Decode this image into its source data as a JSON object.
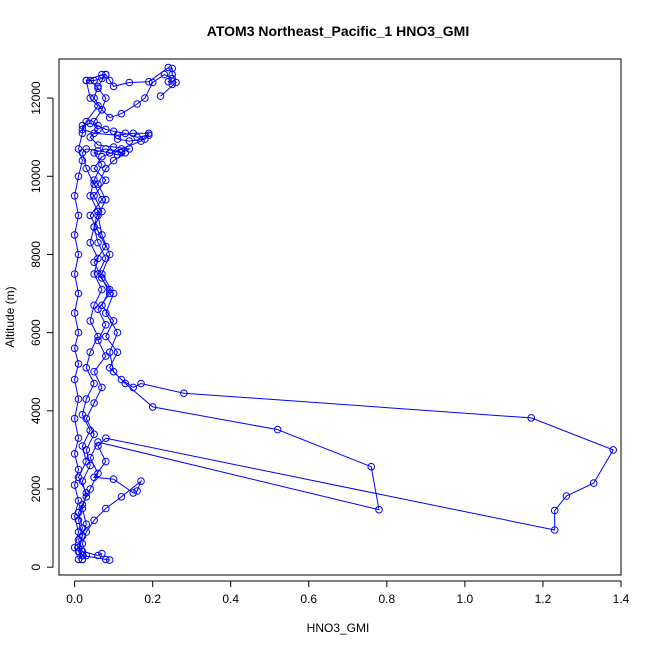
{
  "chart_data": {
    "type": "line",
    "title": "ATOM3 Northeast_Pacific_1 HNO3_GMI",
    "xlabel": "HNO3_GMI",
    "ylabel": "Altitude (m)",
    "xlim": [
      -0.04,
      1.4
    ],
    "ylim": [
      -200,
      13000
    ],
    "xticks": [
      0.0,
      0.2,
      0.4,
      0.6,
      0.8,
      1.0,
      1.2,
      1.4
    ],
    "yticks": [
      0,
      2000,
      4000,
      6000,
      8000,
      10000,
      12000
    ],
    "xtick_labels": [
      "0.0",
      "0.2",
      "0.4",
      "0.6",
      "0.8",
      "1.0",
      "1.2",
      "1.4"
    ],
    "ytick_labels": [
      "0",
      "2000",
      "4000",
      "6000",
      "8000",
      "10000",
      "12000"
    ],
    "grid": false,
    "legend": "none",
    "series_color": "#0000ff",
    "series": [
      {
        "values": [
          [
            0.09,
            180
          ],
          [
            0.08,
            200
          ],
          [
            0.02,
            300
          ],
          [
            0.01,
            500
          ],
          [
            0.02,
            800
          ],
          [
            0.03,
            1100
          ],
          [
            0.02,
            1500
          ],
          [
            0.03,
            1900
          ],
          [
            0.01,
            2300
          ],
          [
            0.03,
            2700
          ],
          [
            0.02,
            3100
          ],
          [
            0.04,
            3500
          ],
          [
            0.02,
            3900
          ],
          [
            0.03,
            4300
          ],
          [
            0.05,
            4700
          ],
          [
            0.03,
            5100
          ],
          [
            0.04,
            5500
          ],
          [
            0.06,
            5900
          ],
          [
            0.04,
            6300
          ],
          [
            0.05,
            6700
          ],
          [
            0.07,
            7100
          ],
          [
            0.05,
            7500
          ],
          [
            0.06,
            7900
          ],
          [
            0.04,
            8300
          ],
          [
            0.05,
            8700
          ],
          [
            0.06,
            9100
          ],
          [
            0.04,
            9500
          ],
          [
            0.05,
            9900
          ],
          [
            0.07,
            10300
          ],
          [
            0.05,
            10600
          ],
          [
            0.08,
            10700
          ],
          [
            0.12,
            10600
          ],
          [
            0.14,
            10700
          ],
          [
            0.1,
            10750
          ],
          [
            0.06,
            10800
          ],
          [
            0.04,
            11000
          ],
          [
            0.06,
            11200
          ],
          [
            0.05,
            11400
          ],
          [
            0.07,
            11700
          ],
          [
            0.05,
            12000
          ],
          [
            0.06,
            12300
          ],
          [
            0.08,
            12600
          ],
          [
            0.07,
            12500
          ],
          [
            0.05,
            12450
          ],
          [
            0.03,
            12450
          ],
          [
            0.04,
            12000
          ],
          [
            0.06,
            11800
          ],
          [
            0.03,
            11400
          ],
          [
            0.02,
            11200
          ],
          [
            0.05,
            11100
          ],
          [
            0.11,
            11050
          ],
          [
            0.15,
            11100
          ],
          [
            0.19,
            11100
          ],
          [
            0.17,
            10900
          ],
          [
            0.12,
            10700
          ],
          [
            0.07,
            10500
          ],
          [
            0.05,
            10200
          ],
          [
            0.08,
            9900
          ],
          [
            0.05,
            9500
          ],
          [
            0.07,
            9100
          ],
          [
            0.05,
            8700
          ],
          [
            0.06,
            8300
          ],
          [
            0.08,
            7900
          ],
          [
            0.06,
            7500
          ],
          [
            0.09,
            7100
          ],
          [
            0.07,
            6700
          ],
          [
            0.1,
            6300
          ],
          [
            0.08,
            5900
          ],
          [
            0.11,
            5500
          ],
          [
            0.09,
            5100
          ],
          [
            0.12,
            4800
          ],
          [
            0.15,
            4600
          ],
          [
            0.17,
            4700
          ],
          [
            0.28,
            4450
          ],
          [
            1.17,
            3820
          ],
          [
            1.38,
            3000
          ],
          [
            1.33,
            2150
          ],
          [
            1.26,
            1820
          ],
          [
            1.23,
            1450
          ],
          [
            1.23,
            950
          ],
          [
            0.08,
            3300
          ],
          [
            0.06,
            3100
          ],
          [
            0.08,
            2700
          ],
          [
            0.05,
            2300
          ],
          [
            0.1,
            2250
          ],
          [
            0.15,
            1900
          ],
          [
            0.16,
            1950
          ],
          [
            0.17,
            2200
          ],
          [
            0.12,
            1800
          ],
          [
            0.08,
            1500
          ],
          [
            0.05,
            1200
          ],
          [
            0.03,
            900
          ],
          [
            0.02,
            600
          ],
          [
            0.03,
            300
          ],
          [
            0.02,
            200
          ]
        ]
      },
      {
        "values": [
          [
            0.07,
            350
          ],
          [
            0.06,
            300
          ],
          [
            0.02,
            400
          ],
          [
            0.01,
            700
          ],
          [
            0.02,
            1000
          ],
          [
            0.01,
            1400
          ],
          [
            0.03,
            1800
          ],
          [
            0.02,
            2200
          ],
          [
            0.04,
            2600
          ],
          [
            0.03,
            3000
          ],
          [
            0.05,
            3400
          ],
          [
            0.03,
            3800
          ],
          [
            0.05,
            4200
          ],
          [
            0.07,
            4600
          ],
          [
            0.05,
            5000
          ],
          [
            0.08,
            5400
          ],
          [
            0.06,
            5800
          ],
          [
            0.08,
            6200
          ],
          [
            0.06,
            6600
          ],
          [
            0.09,
            7000
          ],
          [
            0.07,
            7400
          ],
          [
            0.05,
            7800
          ],
          [
            0.08,
            8200
          ],
          [
            0.06,
            8600
          ],
          [
            0.04,
            9000
          ],
          [
            0.07,
            9400
          ],
          [
            0.05,
            9800
          ],
          [
            0.03,
            10200
          ],
          [
            0.02,
            10600
          ],
          [
            0.03,
            10700
          ],
          [
            0.06,
            10650
          ],
          [
            0.09,
            10600
          ],
          [
            0.11,
            10550
          ],
          [
            0.13,
            10600
          ],
          [
            0.1,
            10400
          ],
          [
            0.08,
            10200
          ],
          [
            0.06,
            9800
          ],
          [
            0.08,
            9400
          ],
          [
            0.06,
            9000
          ],
          [
            0.07,
            8500
          ],
          [
            0.09,
            8000
          ],
          [
            0.07,
            7500
          ],
          [
            0.1,
            7000
          ],
          [
            0.08,
            6500
          ],
          [
            0.11,
            6000
          ],
          [
            0.09,
            5500
          ],
          [
            0.1,
            5000
          ],
          [
            0.13,
            4700
          ],
          [
            0.2,
            4100
          ],
          [
            0.52,
            3520
          ],
          [
            0.76,
            2570
          ],
          [
            0.78,
            1470
          ],
          [
            0.06,
            3200
          ],
          [
            0.04,
            2800
          ],
          [
            0.06,
            2400
          ],
          [
            0.04,
            2000
          ],
          [
            0.02,
            1600
          ],
          [
            0.01,
            1200
          ],
          [
            0.02,
            800
          ],
          [
            0.01,
            400
          ],
          [
            0.02,
            200
          ]
        ]
      },
      {
        "values": [
          [
            0.01,
            200
          ],
          [
            0.0,
            500
          ],
          [
            0.01,
            900
          ],
          [
            0.0,
            1300
          ],
          [
            0.01,
            1700
          ],
          [
            0.0,
            2100
          ],
          [
            0.01,
            2500
          ],
          [
            0.0,
            2900
          ],
          [
            0.01,
            3300
          ],
          [
            0.0,
            3800
          ],
          [
            0.01,
            4300
          ],
          [
            0.0,
            4800
          ],
          [
            0.01,
            5200
          ],
          [
            0.0,
            5600
          ],
          [
            0.01,
            6000
          ],
          [
            0.0,
            6500
          ],
          [
            0.01,
            7000
          ],
          [
            0.0,
            7500
          ],
          [
            0.01,
            8000
          ],
          [
            0.0,
            8500
          ],
          [
            0.01,
            9000
          ],
          [
            0.0,
            9500
          ],
          [
            0.01,
            10000
          ],
          [
            0.02,
            10400
          ],
          [
            0.01,
            10700
          ],
          [
            0.02,
            11100
          ],
          [
            0.02,
            11300
          ],
          [
            0.04,
            11350
          ],
          [
            0.06,
            11300
          ],
          [
            0.08,
            11200
          ],
          [
            0.1,
            11150
          ],
          [
            0.13,
            11100
          ],
          [
            0.16,
            11000
          ],
          [
            0.19,
            11050
          ],
          [
            0.18,
            10950
          ],
          [
            0.14,
            10900
          ],
          [
            0.11,
            10950
          ]
        ]
      },
      {
        "values": [
          [
            0.25,
            12350
          ],
          [
            0.24,
            12420
          ],
          [
            0.25,
            12500
          ],
          [
            0.23,
            12600
          ],
          [
            0.2,
            12400
          ],
          [
            0.18,
            12000
          ],
          [
            0.16,
            11850
          ],
          [
            0.12,
            11600
          ],
          [
            0.09,
            11500
          ],
          [
            0.07,
            11700
          ],
          [
            0.08,
            12000
          ],
          [
            0.06,
            12250
          ],
          [
            0.04,
            12450
          ],
          [
            0.03,
            12450
          ],
          [
            0.07,
            12600
          ],
          [
            0.08,
            12600
          ],
          [
            0.09,
            12450
          ],
          [
            0.1,
            12300
          ],
          [
            0.14,
            12400
          ],
          [
            0.19,
            12420
          ],
          [
            0.24,
            12780
          ],
          [
            0.25,
            12760
          ],
          [
            0.25,
            12600
          ],
          [
            0.26,
            12400
          ],
          [
            0.22,
            12050
          ]
        ]
      }
    ]
  }
}
